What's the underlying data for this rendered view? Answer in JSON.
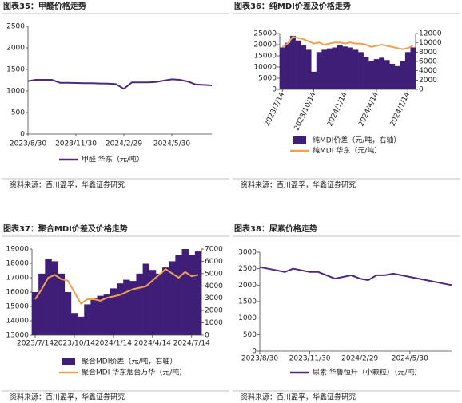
{
  "chart_data": [
    {
      "type": "line",
      "title": "图表35：甲醛价格走势",
      "source": "资料来源：百川盈孚，华鑫证券研究",
      "categories": [
        "2023/8/30",
        null,
        null,
        null,
        null,
        null,
        "2023/11/30",
        null,
        null,
        null,
        null,
        null,
        "2024/2/29",
        null,
        null,
        null,
        null,
        null,
        "2024/5/30",
        null,
        null,
        null,
        null,
        null
      ],
      "series": [
        {
          "name": "甲醛 华东（元/吨）",
          "color": "#4b2a80",
          "values": [
            1230,
            1260,
            1260,
            1260,
            1190,
            1190,
            1185,
            1180,
            1180,
            1175,
            1170,
            1160,
            1050,
            1200,
            1200,
            1200,
            1210,
            1240,
            1270,
            1260,
            1220,
            1150,
            1140,
            1130
          ]
        }
      ],
      "ylim": [
        0,
        2500
      ],
      "yticks": [
        0,
        500,
        1000,
        1500,
        2000,
        2500
      ]
    },
    {
      "type": "bar_line",
      "title": "图表36：纯MDI价差及价格走势",
      "source": "资料来源：百川盈孚，华鑫证券研究",
      "categories": [
        "2023/7/14",
        null,
        null,
        null,
        null,
        null,
        "2023/10/14",
        null,
        null,
        null,
        null,
        null,
        "2024/1/14",
        null,
        null,
        null,
        null,
        null,
        "2024/4/14",
        null,
        null,
        null,
        null,
        null,
        "2024/7/14",
        null
      ],
      "series": [
        {
          "name": "纯MDI价差（元/吨，右轴）",
          "color": "#3f1e78",
          "type": "bar",
          "axis": "y2",
          "values": [
            9000,
            10000,
            11500,
            10500,
            9500,
            8500,
            3800,
            8000,
            8500,
            8800,
            9000,
            9500,
            9200,
            9000,
            8500,
            8000,
            7000,
            6000,
            6500,
            6800,
            6300,
            5500,
            5000,
            6000,
            8000,
            9000
          ]
        },
        {
          "name": "纯MDI 华东（元/吨）",
          "color": "#f0a050",
          "type": "line",
          "values": [
            19000,
            20500,
            23500,
            23000,
            22500,
            21500,
            20500,
            21000,
            20000,
            20500,
            21000,
            21000,
            20500,
            21000,
            20500,
            20500,
            20000,
            19000,
            19500,
            20000,
            19500,
            19000,
            18500,
            18000,
            18500,
            19500
          ]
        }
      ],
      "ylim": [
        0,
        25000
      ],
      "yticks": [
        0,
        5000,
        10000,
        15000,
        20000,
        25000
      ],
      "y2lim": [
        0,
        12000
      ],
      "y2ticks": [
        0,
        2000,
        4000,
        6000,
        8000,
        10000,
        12000
      ]
    },
    {
      "type": "bar_line",
      "title": "图表37：聚合MDI价差及价格走势",
      "source": "资料来源：百川盈孚，华鑫证券研究",
      "categories": [
        "2023/7/14",
        null,
        null,
        null,
        null,
        null,
        "2023/10/14",
        null,
        null,
        null,
        null,
        null,
        "2024/1/14",
        null,
        null,
        null,
        null,
        null,
        "2024/4/14",
        null,
        null,
        null,
        null,
        null,
        "2024/7/14",
        null
      ],
      "series": [
        {
          "name": "聚合MDI价差（元/吨，右轴）",
          "color": "#3f1e78",
          "type": "bar",
          "axis": "y2",
          "values": [
            3500,
            5000,
            6200,
            6000,
            5000,
            3500,
            1800,
            1500,
            2500,
            3000,
            3200,
            3300,
            3800,
            4200,
            4500,
            4400,
            5000,
            5800,
            5300,
            5000,
            5500,
            6000,
            6500,
            7000,
            6500,
            6800
          ]
        },
        {
          "name": "聚合MDI 华东烟台万华（元/吨）",
          "color": "#f0a050",
          "type": "line",
          "values": [
            15500,
            16200,
            17000,
            17200,
            16900,
            16800,
            16000,
            15200,
            15500,
            15500,
            15400,
            15600,
            15700,
            15800,
            16000,
            16200,
            16300,
            16400,
            16800,
            17200,
            17600,
            17300,
            17000,
            17400,
            17100,
            17200
          ]
        }
      ],
      "ylim": [
        13000,
        19000
      ],
      "yticks": [
        13000,
        14000,
        15000,
        16000,
        17000,
        18000,
        19000
      ],
      "y2lim": [
        0,
        7000
      ],
      "y2ticks": [
        0,
        1000,
        2000,
        3000,
        4000,
        5000,
        6000,
        7000
      ]
    },
    {
      "type": "line",
      "title": "图表38：尿素价格走势",
      "source": "资料来源：百川盈孚，华鑫证券研究",
      "categories": [
        "2023/8/30",
        null,
        null,
        null,
        null,
        null,
        "2023/11/30",
        null,
        null,
        null,
        null,
        null,
        "2024/2/29",
        null,
        null,
        null,
        null,
        null,
        "2024/5/30",
        null,
        null,
        null,
        null,
        null
      ],
      "series": [
        {
          "name": "尿素 华鲁恒升（小颗粒）（元/吨）",
          "color": "#4b2a80",
          "values": [
            2550,
            2500,
            2450,
            2400,
            2500,
            2450,
            2400,
            2400,
            2300,
            2200,
            2250,
            2300,
            2200,
            2150,
            2300,
            2300,
            2350,
            2300,
            2250,
            2200,
            2150,
            2100,
            2050,
            2000
          ]
        }
      ],
      "ylim": [
        0,
        3000
      ],
      "yticks": [
        0,
        500,
        1000,
        1500,
        2000,
        2500,
        3000
      ]
    }
  ]
}
